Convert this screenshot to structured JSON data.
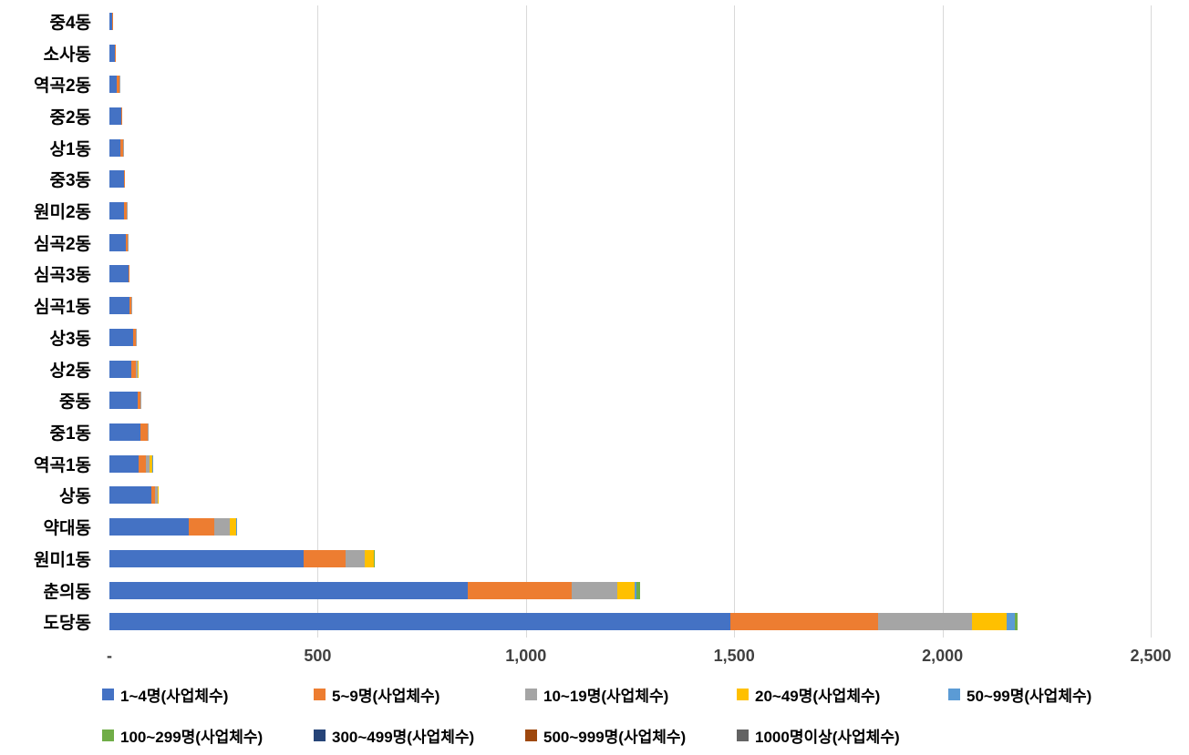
{
  "chart_data": {
    "type": "bar",
    "orientation": "horizontal",
    "stacked": true,
    "title": "",
    "xlabel": "",
    "ylabel": "",
    "grid": "vertical",
    "legend_position": "bottom",
    "categories": [
      "중4동",
      "소사동",
      "역곡2동",
      "중2동",
      "상1동",
      "중3동",
      "원미2동",
      "심곡2동",
      "심곡3동",
      "심곡1동",
      "상3동",
      "상2동",
      "중동",
      "중1동",
      "역곡1동",
      "상동",
      "약대동",
      "원미1동",
      "춘의동",
      "도당동"
    ],
    "series": [
      {
        "name": "1~4명(사업체수)",
        "color": "#4472C4",
        "values": [
          6,
          14,
          18,
          28,
          26,
          36,
          36,
          40,
          46,
          48,
          58,
          52,
          68,
          75,
          70,
          100,
          190,
          466,
          860,
          1490
        ]
      },
      {
        "name": "5~9명(사업체수)",
        "color": "#ED7D31",
        "values": [
          3,
          1,
          5,
          2,
          6,
          2,
          6,
          4,
          2,
          4,
          6,
          12,
          6,
          16,
          18,
          10,
          62,
          100,
          250,
          355
        ]
      },
      {
        "name": "10~19명(사업체수)",
        "color": "#A5A5A5",
        "values": [
          0,
          0,
          1,
          0,
          1,
          0,
          1,
          1,
          0,
          1,
          1,
          3,
          1,
          3,
          8,
          5,
          38,
          48,
          110,
          225
        ]
      },
      {
        "name": "20~49명(사업체수)",
        "color": "#FFC000",
        "values": [
          0,
          0,
          0,
          0,
          0,
          0,
          0,
          0,
          0,
          0,
          0,
          2,
          0,
          0,
          8,
          1,
          14,
          20,
          40,
          85
        ]
      },
      {
        "name": "50~99명(사업체수)",
        "color": "#5B9BD5",
        "values": [
          0,
          0,
          0,
          0,
          0,
          0,
          0,
          0,
          0,
          0,
          0,
          0,
          0,
          0,
          1,
          0,
          1,
          2,
          5,
          20
        ]
      },
      {
        "name": "100~299명(사업체수)",
        "color": "#70AD47",
        "values": [
          0,
          0,
          0,
          0,
          0,
          0,
          0,
          0,
          0,
          0,
          0,
          0,
          0,
          0,
          0,
          0,
          0,
          1,
          10,
          5
        ]
      },
      {
        "name": "300~499명(사업체수)",
        "color": "#264478",
        "values": [
          0,
          0,
          0,
          0,
          0,
          0,
          0,
          0,
          0,
          0,
          0,
          0,
          0,
          0,
          0,
          0,
          0,
          0,
          0,
          0
        ]
      },
      {
        "name": "500~999명(사업체수)",
        "color": "#9E480E",
        "values": [
          0,
          0,
          0,
          0,
          0,
          0,
          0,
          0,
          0,
          0,
          0,
          0,
          0,
          0,
          0,
          0,
          0,
          0,
          0,
          0
        ]
      },
      {
        "name": "1000명이상(사업체수)",
        "color": "#636363",
        "values": [
          0,
          0,
          0,
          0,
          0,
          0,
          0,
          0,
          0,
          0,
          0,
          0,
          0,
          0,
          0,
          0,
          0,
          0,
          0,
          0
        ]
      }
    ],
    "x_axis": {
      "min": 0,
      "max": 2500,
      "tick_values": [
        0,
        500,
        1000,
        1500,
        2000,
        2500
      ],
      "tick_labels": [
        "-",
        "500",
        "1,000",
        "1,500",
        "2,000",
        "2,500"
      ]
    },
    "colors": {
      "gridline": "#d9d9d9",
      "axis_text": "#404040",
      "label_text": "#000000"
    }
  }
}
